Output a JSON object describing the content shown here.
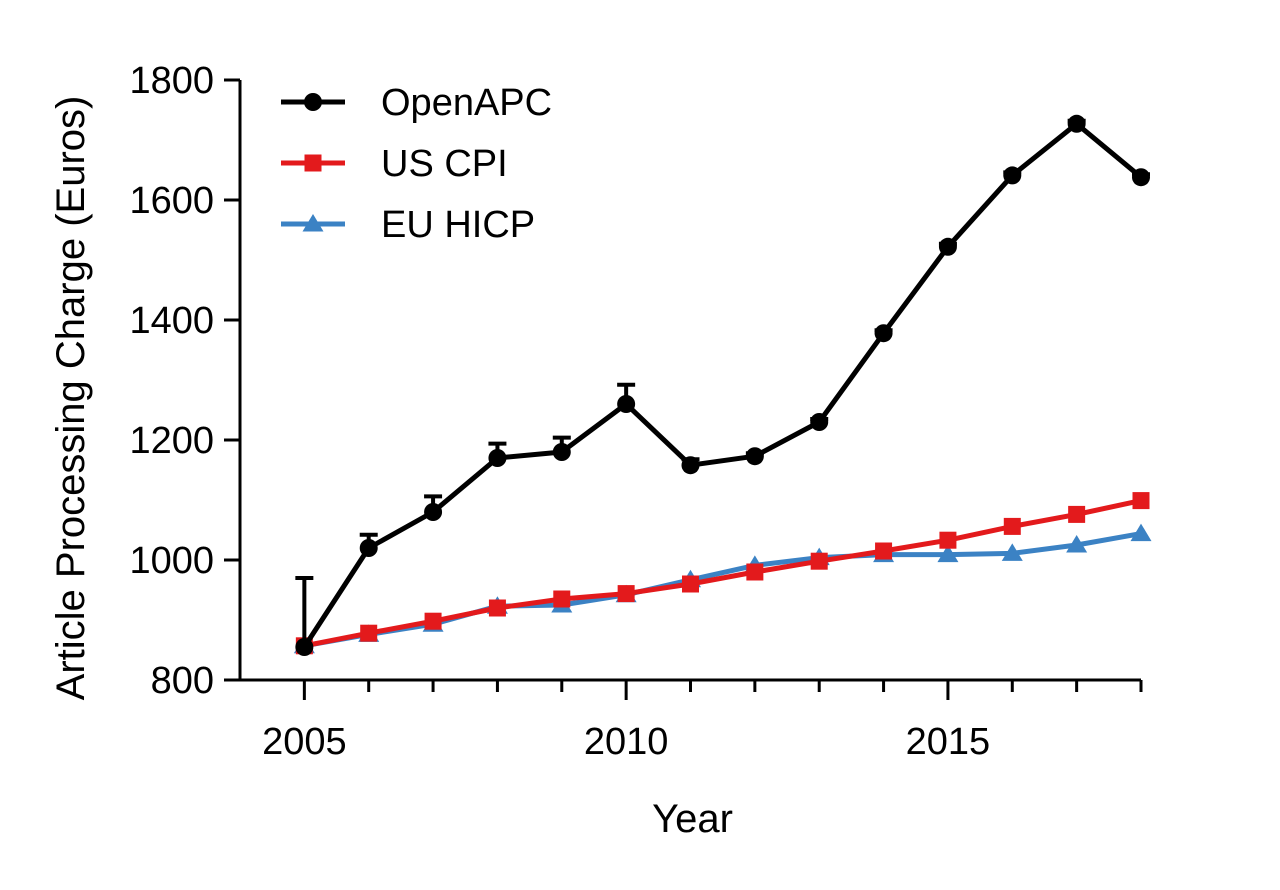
{
  "chart_data": {
    "type": "line",
    "title": "",
    "xlabel": "Year",
    "ylabel": "Article Processing Charge (Euros)",
    "x": [
      2005,
      2006,
      2007,
      2008,
      2009,
      2010,
      2011,
      2012,
      2013,
      2014,
      2015,
      2016,
      2017,
      2018
    ],
    "xlim": [
      2004,
      2018
    ],
    "ylim": [
      800,
      1800
    ],
    "x_ticks": [
      2005,
      2010,
      2015
    ],
    "x_tick_labels": [
      "2005",
      "2010",
      "2015"
    ],
    "y_ticks": [
      800,
      1000,
      1200,
      1400,
      1600,
      1800
    ],
    "y_tick_labels": [
      "800",
      "1000",
      "1200",
      "1400",
      "1600",
      "1800"
    ],
    "grid": false,
    "legend_position": "top-left",
    "series": [
      {
        "name": "OpenAPC",
        "color": "#000000",
        "marker": "circle",
        "values": [
          855,
          1020,
          1080,
          1170,
          1180,
          1260,
          1158,
          1173,
          1230,
          1378,
          1522,
          1641,
          1727,
          1638
        ],
        "error_upper": [
          970,
          1042,
          1106,
          1194,
          1204,
          1292,
          1168,
          1178,
          1235,
          1383,
          1527,
          1646,
          1732,
          1643
        ]
      },
      {
        "name": "US CPI",
        "color": "#e31a1c",
        "marker": "square",
        "values": [
          857,
          878,
          898,
          920,
          935,
          944,
          960,
          980,
          998,
          1015,
          1033,
          1056,
          1076,
          1099
        ]
      },
      {
        "name": "EU HICP",
        "color": "#3b82c4",
        "marker": "triangle",
        "values": [
          857,
          876,
          893,
          923,
          925,
          942,
          967,
          991,
          1004,
          1009,
          1009,
          1011,
          1025,
          1044
        ]
      }
    ]
  }
}
